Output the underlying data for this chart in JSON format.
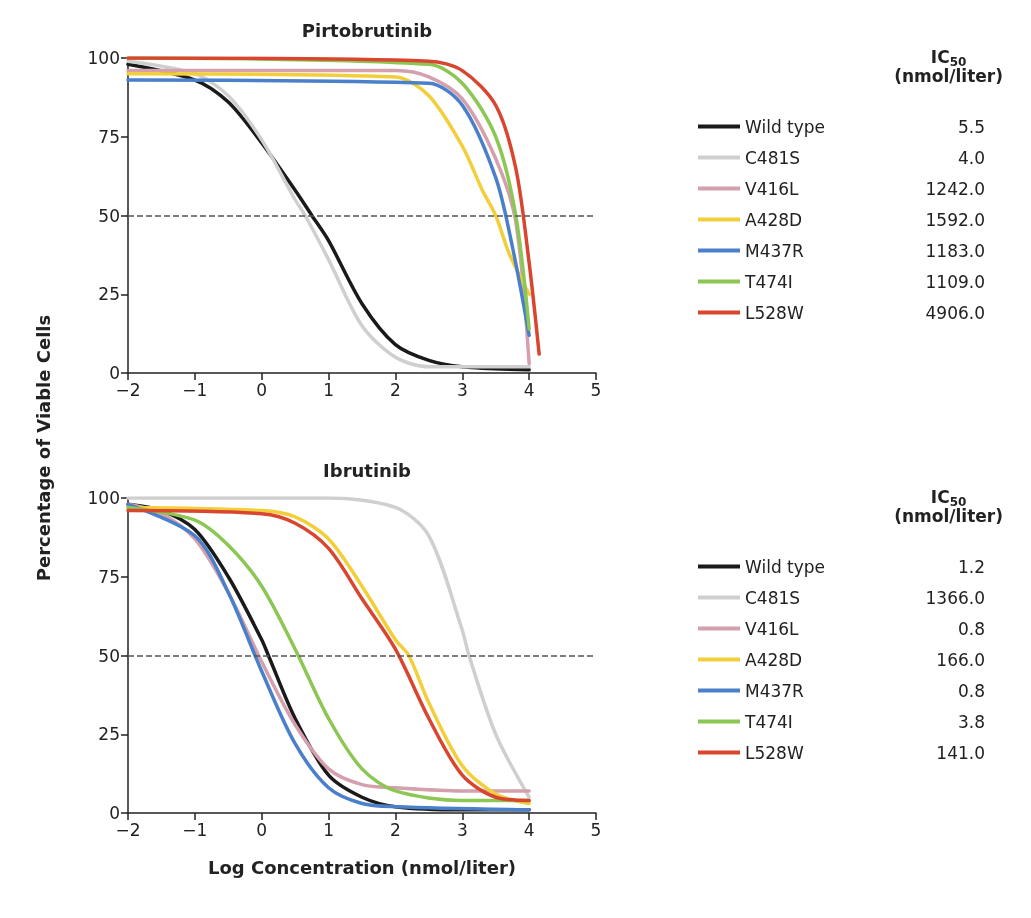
{
  "chart_data": [
    {
      "type": "line",
      "title": "Pirtobrutinib",
      "ylabel": "Percentage of Viable Cells",
      "legend_title": "IC$_{50}$\n(nmol/liter)",
      "xlim": [
        -2,
        5
      ],
      "xticks": [
        -2,
        -1,
        0,
        1,
        2,
        3,
        4,
        5
      ],
      "ylim": [
        0,
        100
      ],
      "yticks": [
        0,
        25,
        50,
        75,
        100
      ],
      "grid": false,
      "legend": "right",
      "marker": "none",
      "line_style": "solid",
      "ref_lines": [
        {
          "axis": "y",
          "value": 50,
          "line_style": "dashed",
          "color": "#555555"
        }
      ],
      "annotations": [
        "5.5",
        "4.0",
        "1242.0",
        "1592.0",
        "1183.0",
        "1109.0",
        "4906.0"
      ],
      "series": [
        {
          "name": "Wild type",
          "color": "#1a1a1a",
          "x": [
            -2,
            -1,
            -0.5,
            0,
            0.5,
            0.75,
            1,
            1.5,
            2,
            2.5,
            3,
            4
          ],
          "values": [
            98,
            93,
            86,
            73,
            58,
            50,
            42,
            22,
            9,
            4,
            2,
            1
          ]
        },
        {
          "name": "C481S",
          "color": "#cfcfcf",
          "x": [
            -2,
            -1,
            -0.5,
            0,
            0.5,
            0.65,
            1,
            1.5,
            2,
            2.5,
            3,
            4
          ],
          "values": [
            99,
            95,
            88,
            74,
            55,
            50,
            36,
            15,
            5,
            2,
            2,
            2
          ]
        },
        {
          "name": "V416L",
          "color": "#d4a0ad",
          "x": [
            -2,
            2,
            2.5,
            3,
            3.5,
            3.8,
            4
          ],
          "values": [
            96,
            96,
            94,
            87,
            68,
            48,
            3
          ]
        },
        {
          "name": "A428D",
          "color": "#f2cf3a",
          "x": [
            -2,
            2,
            2.5,
            3,
            3.3,
            3.5,
            3.7,
            4
          ],
          "values": [
            95,
            94,
            88,
            72,
            58,
            50,
            38,
            25
          ]
        },
        {
          "name": "M437R",
          "color": "#4a7fc9",
          "x": [
            -2,
            2.5,
            3,
            3.5,
            3.75,
            4
          ],
          "values": [
            93,
            92,
            85,
            62,
            40,
            12
          ]
        },
        {
          "name": "T474I",
          "color": "#8cc653",
          "x": [
            -2,
            2.5,
            3,
            3.5,
            3.8,
            4
          ],
          "values": [
            100,
            98,
            92,
            75,
            50,
            14
          ]
        },
        {
          "name": "L528W",
          "color": "#d9452e",
          "x": [
            -2,
            2.5,
            3,
            3.5,
            3.8,
            4,
            4.15
          ],
          "values": [
            100,
            99,
            96,
            85,
            65,
            35,
            6
          ]
        }
      ]
    },
    {
      "type": "line",
      "title": "Ibrutinib",
      "xlabel": "Log Concentration (nmol/liter)",
      "legend_title": "IC$_{50}$\n(nmol/liter)",
      "xlim": [
        -2,
        5
      ],
      "xticks": [
        -2,
        -1,
        0,
        1,
        2,
        3,
        4,
        5
      ],
      "ylim": [
        0,
        100
      ],
      "yticks": [
        0,
        25,
        50,
        75,
        100
      ],
      "grid": false,
      "legend": "right",
      "marker": "none",
      "line_style": "solid",
      "ref_lines": [
        {
          "axis": "y",
          "value": 50,
          "line_style": "dashed",
          "color": "#555555"
        }
      ],
      "annotations": [
        "1.2",
        "1366.0",
        "0.8",
        "166.0",
        "0.8",
        "3.8",
        "141.0"
      ],
      "series": [
        {
          "name": "Wild type",
          "color": "#1a1a1a",
          "x": [
            -2,
            -1.5,
            -1,
            -0.5,
            0,
            0.1,
            0.5,
            1,
            1.5,
            2,
            3,
            4
          ],
          "values": [
            98,
            96,
            90,
            75,
            55,
            50,
            30,
            12,
            5,
            2,
            1,
            1
          ]
        },
        {
          "name": "C481S",
          "color": "#cfcfcf",
          "x": [
            -2,
            1,
            2,
            2.5,
            3,
            3.1,
            3.5,
            4
          ],
          "values": [
            100,
            100,
            97,
            88,
            58,
            50,
            25,
            5
          ]
        },
        {
          "name": "V416L",
          "color": "#d4a0ad",
          "x": [
            -2,
            -1.5,
            -1,
            -0.5,
            0,
            0.5,
            1,
            1.5,
            2,
            3,
            4
          ],
          "values": [
            98,
            95,
            87,
            70,
            48,
            28,
            14,
            9,
            8,
            7,
            7
          ]
        },
        {
          "name": "A428D",
          "color": "#f2cf3a",
          "x": [
            -2,
            0,
            0.5,
            1,
            1.5,
            2,
            2.2,
            2.5,
            3,
            3.5,
            4
          ],
          "values": [
            97,
            96,
            94,
            87,
            72,
            55,
            50,
            35,
            15,
            6,
            3
          ]
        },
        {
          "name": "M437R",
          "color": "#4a7fc9",
          "x": [
            -2,
            -1,
            -0.5,
            0,
            0.5,
            1,
            1.5,
            2,
            4
          ],
          "values": [
            98,
            88,
            70,
            45,
            22,
            8,
            3,
            2,
            1
          ]
        },
        {
          "name": "T474I",
          "color": "#8cc653",
          "x": [
            -2,
            -1,
            -0.5,
            0,
            0.5,
            1,
            1.5,
            2,
            3,
            4
          ],
          "values": [
            97,
            93,
            85,
            72,
            52,
            30,
            14,
            7,
            4,
            4
          ]
        },
        {
          "name": "L528W",
          "color": "#d9452e",
          "x": [
            -2,
            0,
            0.5,
            1,
            1.5,
            2,
            2.5,
            3,
            3.5,
            4
          ],
          "values": [
            96,
            95,
            92,
            84,
            68,
            52,
            30,
            12,
            5,
            4
          ]
        }
      ]
    }
  ]
}
